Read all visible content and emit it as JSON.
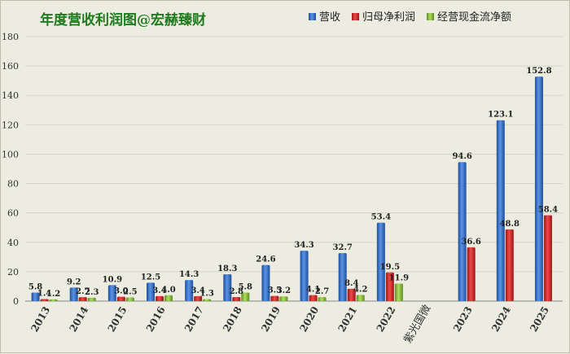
{
  "chart_data": {
    "type": "bar",
    "title": "年度营收利润图@宏赫臻财",
    "categories": [
      "2013",
      "2014",
      "2015",
      "2016",
      "2017",
      "2018",
      "2019",
      "2020",
      "2021",
      "2022",
      "",
      "2023",
      "2024",
      "2025"
    ],
    "series": [
      {
        "name": "营收",
        "color": "#3a6fc4",
        "values": [
          5.8,
          9.2,
          10.9,
          12.5,
          14.3,
          18.3,
          24.6,
          34.3,
          32.7,
          53.4,
          null,
          94.6,
          123.1,
          152.8
        ]
      },
      {
        "name": "归母净利润",
        "color": "#d12b2b",
        "values": [
          1.4,
          2.7,
          3.0,
          3.4,
          3.4,
          2.8,
          3.5,
          4.1,
          8.4,
          19.5,
          null,
          36.6,
          48.8,
          58.4
        ]
      },
      {
        "name": "经营现金流净额",
        "color": "#86b63c",
        "values": [
          1.2,
          2.3,
          2.5,
          4.0,
          1.3,
          5.8,
          3.2,
          2.7,
          4.2,
          11.9,
          null,
          null,
          null,
          null
        ]
      }
    ],
    "ylim": [
      0,
      180
    ],
    "yticks": [
      0,
      20,
      40,
      60,
      80,
      100,
      120,
      140,
      160,
      180
    ],
    "grid": true,
    "legend": "top-right",
    "annotation": "紫光国微"
  }
}
